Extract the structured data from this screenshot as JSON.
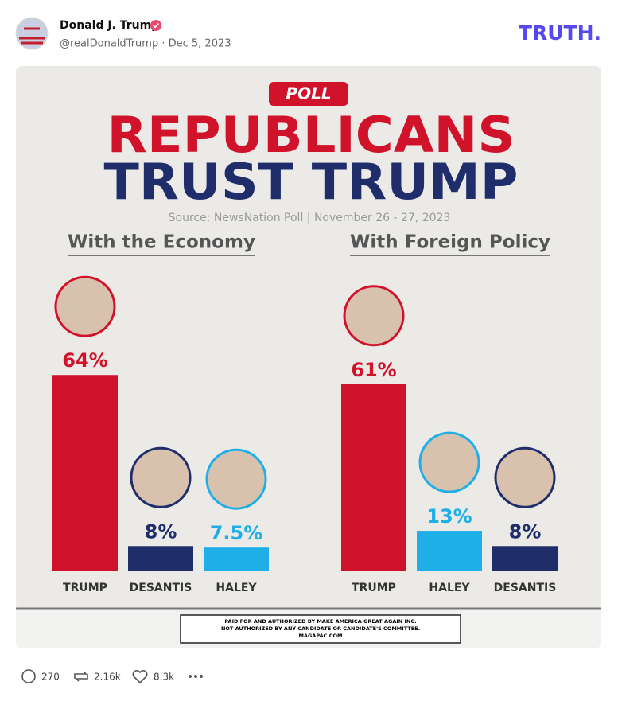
{
  "post": {
    "author": "Donald J. Trump",
    "handle": "@realDonaldTrump · Dec 5, 2023",
    "brand": "TRUTH."
  },
  "graphic": {
    "badge": "POLL",
    "title_line1": "REPUBLICANS",
    "title_line2": "TRUST TRUMP",
    "source": "Source: NewsNation Poll | November 26 - 27, 2023",
    "disclaimer": [
      "PAID FOR AND AUTHORIZED BY MAKE AMERICA GREAT AGAIN INC.",
      "NOT AUTHORIZED BY ANY CANDIDATE OR CANDIDATE'S COMMITTEE.",
      "MAGAPAC.COM"
    ]
  },
  "chart_data": [
    {
      "type": "bar",
      "title": "With the Economy",
      "categories": [
        "TRUMP",
        "DESANTIS",
        "HALEY"
      ],
      "values": [
        64,
        8,
        7.5
      ],
      "value_labels": [
        "64%",
        "8%",
        "7.5%"
      ],
      "colors": [
        "#d0122b",
        "#1f2d6b",
        "#1eaee8"
      ]
    },
    {
      "type": "bar",
      "title": "With Foreign Policy",
      "categories": [
        "TRUMP",
        "HALEY",
        "DESANTIS"
      ],
      "values": [
        61,
        13,
        8
      ],
      "value_labels": [
        "61%",
        "13%",
        "8%"
      ],
      "colors": [
        "#d0122b",
        "#1eaee8",
        "#1f2d6b"
      ]
    }
  ],
  "stats": {
    "replies": "270",
    "reposts": "2.16k",
    "likes": "8.3k"
  }
}
